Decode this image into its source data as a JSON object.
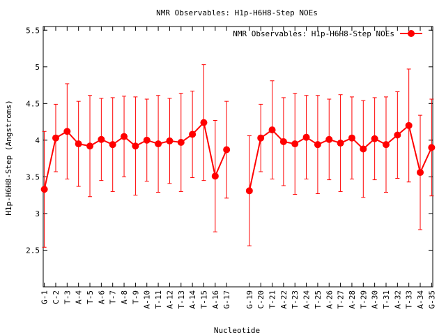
{
  "chart_data": {
    "type": "line",
    "title": "NMR Observables: H1p-H6H8-Step NOEs",
    "xlabel": "Nucleotide",
    "ylabel": "H1p-H6H8-Step (Angstroms)",
    "ylim": [
      2.0,
      5.55
    ],
    "yticks": [
      2.5,
      3,
      3.5,
      4,
      4.5,
      5,
      5.5
    ],
    "ytick_labels": [
      "2.5",
      "3",
      "3.5",
      "4",
      "4.5",
      "5",
      "5.5"
    ],
    "grid": false,
    "legend": "top-right",
    "colors": {
      "series": "#ff0000",
      "axis": "#000000"
    },
    "categories": [
      "G-1",
      "C-2",
      "T-3",
      "A-4",
      "T-5",
      "A-6",
      "T-7",
      "A-8",
      "T-9",
      "A-10",
      "T-11",
      "A-12",
      "T-13",
      "A-14",
      "T-15",
      "A-16",
      "G-17",
      "G-19",
      "C-20",
      "T-21",
      "A-22",
      "T-23",
      "A-24",
      "T-25",
      "A-26",
      "T-27",
      "A-28",
      "T-29",
      "A-30",
      "T-31",
      "A-32",
      "T-33",
      "A-34",
      "G-35"
    ],
    "x": [
      1,
      2,
      3,
      4,
      5,
      6,
      7,
      8,
      9,
      10,
      11,
      12,
      13,
      14,
      15,
      16,
      17,
      19,
      20,
      21,
      22,
      23,
      24,
      25,
      26,
      27,
      28,
      29,
      30,
      31,
      32,
      33,
      34,
      35
    ],
    "series": [
      {
        "name": "NMR Observables: H1p-H6H8-Step NOEs",
        "values": [
          3.33,
          4.03,
          4.12,
          3.95,
          3.92,
          4.01,
          3.94,
          4.05,
          3.92,
          4.0,
          3.95,
          3.99,
          3.97,
          4.08,
          4.24,
          3.51,
          3.87,
          3.31,
          4.03,
          4.14,
          3.98,
          3.95,
          4.04,
          3.94,
          4.01,
          3.96,
          4.03,
          3.88,
          4.02,
          3.94,
          4.07,
          4.2,
          3.56,
          3.9
        ],
        "errors": [
          0.79,
          0.46,
          0.65,
          0.58,
          0.69,
          0.56,
          0.64,
          0.55,
          0.67,
          0.56,
          0.66,
          0.58,
          0.67,
          0.59,
          0.79,
          0.76,
          0.66,
          0.75,
          0.46,
          0.67,
          0.6,
          0.69,
          0.57,
          0.67,
          0.55,
          0.66,
          0.56,
          0.66,
          0.56,
          0.65,
          0.59,
          0.77,
          0.78,
          0.66
        ]
      }
    ]
  }
}
